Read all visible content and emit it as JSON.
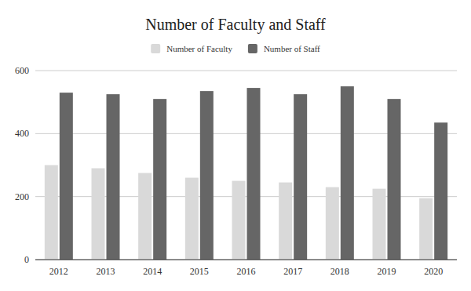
{
  "chart_data": {
    "type": "bar",
    "title": "Number of Faculty and Staff",
    "categories": [
      "2012",
      "2013",
      "2014",
      "2015",
      "2016",
      "2017",
      "2018",
      "2019",
      "2020"
    ],
    "series": [
      {
        "name": "Number of Faculty",
        "color": "#d9d9d9",
        "values": [
          300,
          290,
          275,
          260,
          250,
          245,
          230,
          225,
          195
        ]
      },
      {
        "name": "Number of Staff",
        "color": "#666666",
        "values": [
          530,
          525,
          510,
          535,
          545,
          525,
          550,
          510,
          435
        ]
      }
    ],
    "ylim": [
      0,
      600
    ],
    "yticks": [
      0,
      200,
      400,
      600
    ],
    "grid": true,
    "legend": "top"
  }
}
